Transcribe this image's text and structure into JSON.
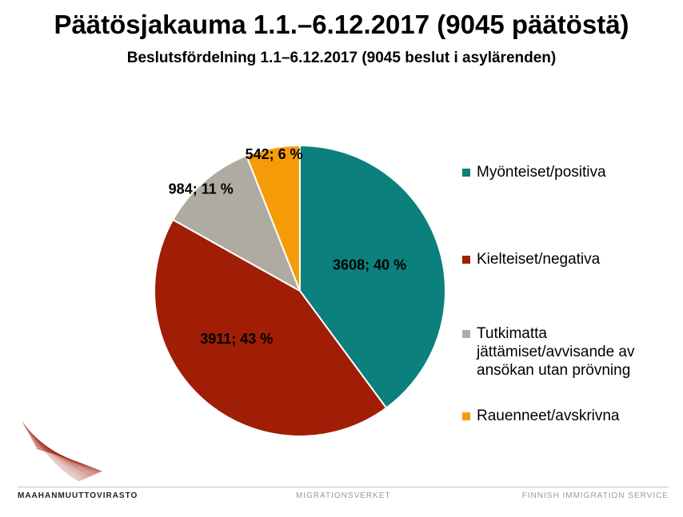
{
  "header": {
    "title": "Päätösjakauma 1.1.–6.12.2017 (9045 päätöstä)",
    "subtitle": "Beslutsfördelning 1.1–6.12.2017 (9045 beslut i asylärenden)"
  },
  "chart_data": {
    "type": "pie",
    "title": "Päätösjakauma 1.1.–6.12.2017 (9045 päätöstä)",
    "total": 9045,
    "slices": [
      {
        "name": "Myönteiset/positiva",
        "value": 3608,
        "label": "3608; 40 %",
        "color": "#0b807c"
      },
      {
        "name": "Kielteiset/negativa",
        "value": 3911,
        "label": "3911; 43 %",
        "color": "#a01e05"
      },
      {
        "name": "Tutkimatta jättämiset/avvisande av ansökan utan prövning",
        "value": 984,
        "label": "984; 11 %",
        "color": "#aeaba2"
      },
      {
        "name": "Rauenneet/avskrivna",
        "value": 542,
        "label": "542; 6 %",
        "color": "#f59b07"
      }
    ],
    "legend_position": "right"
  },
  "legend": {
    "items": [
      {
        "label": "Myönteiset/positiva",
        "color": "#0b807c"
      },
      {
        "label": "Kielteiset/negativa",
        "color": "#a01e05"
      },
      {
        "label": "Tutkimatta jättämiset/avvisande av ansökan utan prövning",
        "color": "#aeaba2"
      },
      {
        "label": "Rauenneet/avskrivna",
        "color": "#f59b07"
      }
    ]
  },
  "footer": {
    "left": "MAAHANMUUTTOVIRASTO",
    "middle": "MIGRATIONSVERKET",
    "right": "FINNISH IMMIGRATION SERVICE"
  },
  "colors": {
    "footer_line": "#c8c8c8",
    "logo": "#a0301a"
  }
}
